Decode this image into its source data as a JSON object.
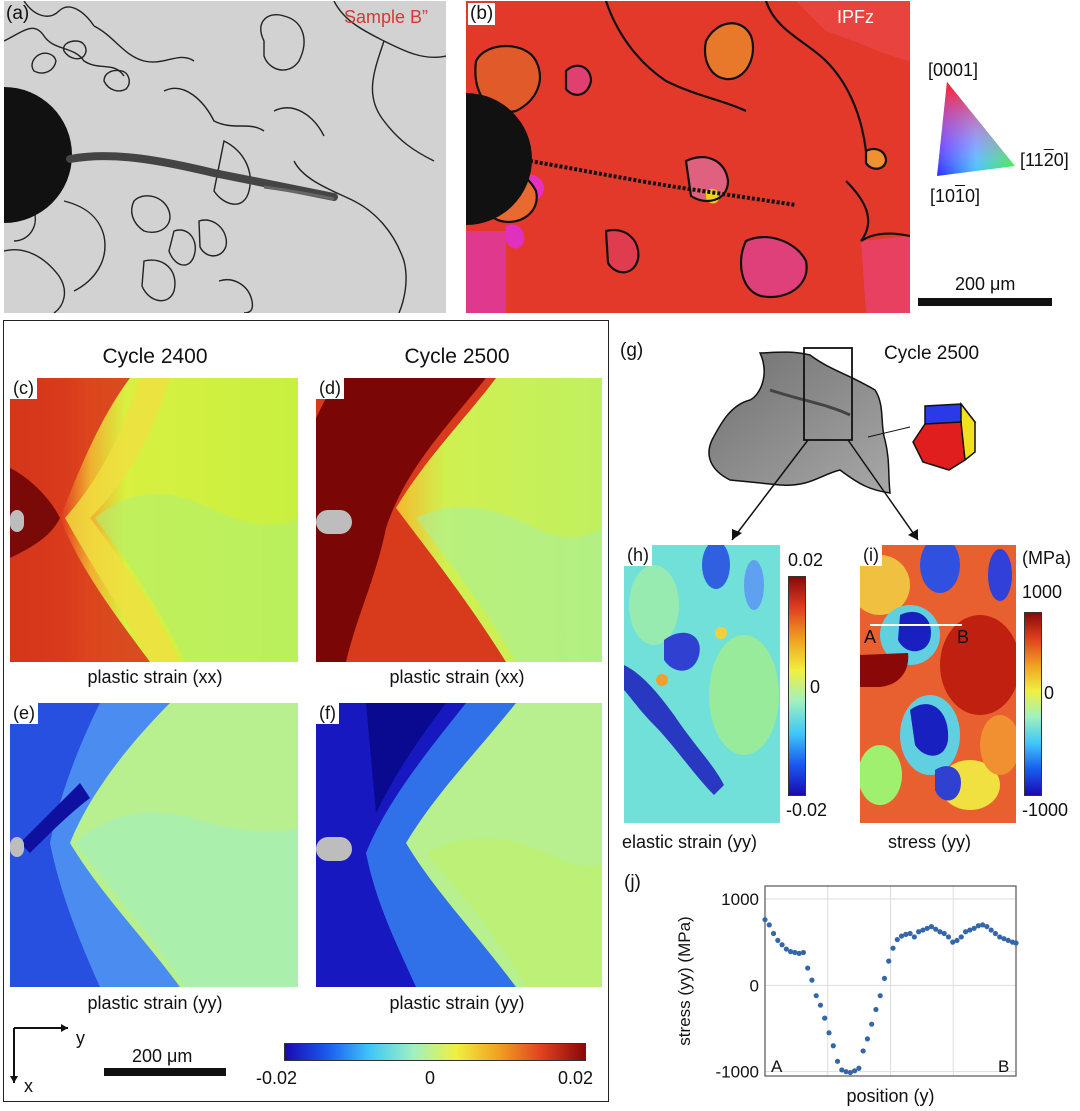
{
  "panel_a": {
    "letter": "(a)",
    "sample": "Sample B”"
  },
  "panel_b": {
    "letter": "(b)",
    "mode": "IPFz"
  },
  "ipf_key": {
    "top": "[0001]",
    "right": "[11̅2̅0]",
    "right_text": "[11",
    "right_bar": "2",
    "right_end": "0]",
    "bottom_text": "[10",
    "bottom_bar": "1",
    "bottom_end": "0]",
    "scale": "200 μm"
  },
  "strain_maps": {
    "titles": [
      "Cycle 2400",
      "Cycle 2500"
    ],
    "letters": [
      "(c)",
      "(d)",
      "(e)",
      "(f)"
    ],
    "captions": [
      "plastic strain (xx)",
      "plastic strain (xx)",
      "plastic strain (yy)",
      "plastic strain (yy)"
    ],
    "axes": {
      "y": "y",
      "x": "x"
    },
    "scale": "200 μm",
    "colorbar": {
      "min": "-0.02",
      "mid": "0",
      "max": "0.02"
    }
  },
  "panel_g": {
    "letter": "(g)",
    "title": "Cycle 2500"
  },
  "panel_h": {
    "letter": "(h)",
    "caption": "elastic strain (yy)",
    "cb_max": "0.02",
    "cb_mid": "0",
    "cb_min": "-0.02"
  },
  "panel_i": {
    "letter": "(i)",
    "caption": "stress (yy)",
    "unit": "(MPa)",
    "cb_max": "1000",
    "cb_mid": "0",
    "cb_min": "-1000",
    "point_a": "A",
    "point_b": "B"
  },
  "chart_data": {
    "type": "scatter",
    "panel_letter": "(j)",
    "title": "",
    "xlabel": "position (y)",
    "ylabel": "stress (yy) (MPa)",
    "ylim": [
      -1050,
      1150
    ],
    "xlim": [
      0,
      1
    ],
    "y_ticks": [
      "1000",
      "0",
      "-1000"
    ],
    "x_annotations": [
      "A",
      "B"
    ],
    "grid": true,
    "color": "#3366aa",
    "x": [
      0.0,
      0.017,
      0.034,
      0.051,
      0.068,
      0.085,
      0.102,
      0.119,
      0.136,
      0.153,
      0.17,
      0.187,
      0.204,
      0.221,
      0.238,
      0.255,
      0.272,
      0.289,
      0.306,
      0.323,
      0.34,
      0.357,
      0.374,
      0.391,
      0.408,
      0.425,
      0.442,
      0.459,
      0.476,
      0.493,
      0.51,
      0.527,
      0.544,
      0.561,
      0.578,
      0.595,
      0.612,
      0.629,
      0.646,
      0.663,
      0.68,
      0.697,
      0.714,
      0.731,
      0.748,
      0.765,
      0.782,
      0.799,
      0.816,
      0.833,
      0.85,
      0.867,
      0.884,
      0.901,
      0.918,
      0.935,
      0.952,
      0.969,
      0.986,
      1.0
    ],
    "values": [
      760,
      700,
      600,
      520,
      470,
      420,
      390,
      380,
      370,
      380,
      200,
      60,
      -120,
      -230,
      -380,
      -550,
      -700,
      -880,
      -980,
      -1000,
      -1010,
      -990,
      -960,
      -760,
      -620,
      -450,
      -280,
      -120,
      80,
      280,
      430,
      530,
      570,
      590,
      600,
      560,
      620,
      640,
      660,
      680,
      650,
      620,
      600,
      560,
      500,
      520,
      560,
      620,
      640,
      660,
      690,
      700,
      680,
      640,
      600,
      560,
      540,
      520,
      500,
      490
    ]
  }
}
